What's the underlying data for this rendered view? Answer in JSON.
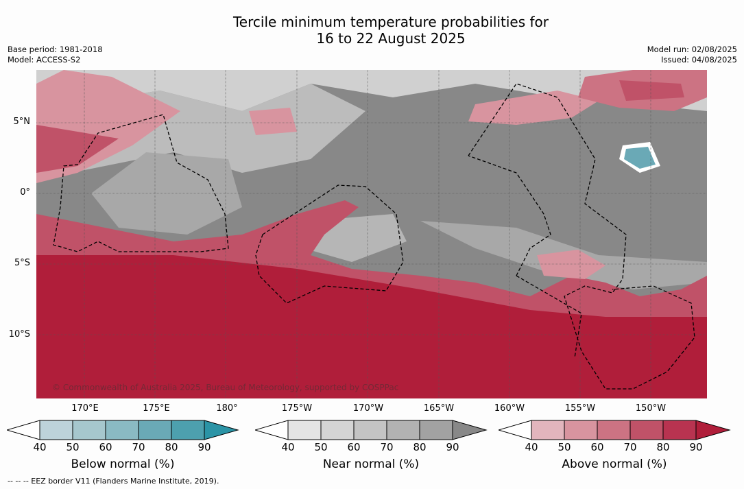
{
  "title": {
    "line1": "Tercile minimum temperature probabilities for",
    "line2": "16 to 22 August 2025"
  },
  "meta": {
    "base_period": "Base period: 1981-2018",
    "model": "Model: ACCESS-S2",
    "model_run": "Model run: 02/08/2025",
    "issued": "Issued: 04/08/2025"
  },
  "axes": {
    "lat_labels": [
      "5°N",
      "0°",
      "5°S",
      "10°S"
    ],
    "lon_labels": [
      "170°E",
      "175°E",
      "180°",
      "175°W",
      "170°W",
      "165°W",
      "160°W",
      "155°W",
      "150°W"
    ]
  },
  "copyright": "© Commonwealth of Australia 2025, Bureau of Meteorology, supported by COSPPac",
  "colorbars": [
    {
      "label": "Below normal (%)",
      "ticks": [
        "40",
        "50",
        "60",
        "70",
        "80",
        "90"
      ],
      "colors": [
        "#ffffff",
        "#bdd3da",
        "#a6c7cd",
        "#8abac3",
        "#6aa9b6",
        "#4da0ae",
        "#2b94a6"
      ]
    },
    {
      "label": "Near normal (%)",
      "ticks": [
        "40",
        "50",
        "60",
        "70",
        "80",
        "90"
      ],
      "colors": [
        "#ffffff",
        "#e4e4e4",
        "#d4d4d4",
        "#c4c4c4",
        "#b2b2b2",
        "#a2a2a2",
        "#888888"
      ]
    },
    {
      "label": "Above normal (%)",
      "ticks": [
        "40",
        "50",
        "60",
        "70",
        "80",
        "90"
      ],
      "colors": [
        "#ffffff",
        "#e2b5bd",
        "#d8949f",
        "#cc7383",
        "#c05268",
        "#b83350",
        "#b01e3a"
      ]
    }
  ],
  "footnote": "--  --  -- EEZ border V11 (Flanders Marine Institute, 2019)."
}
